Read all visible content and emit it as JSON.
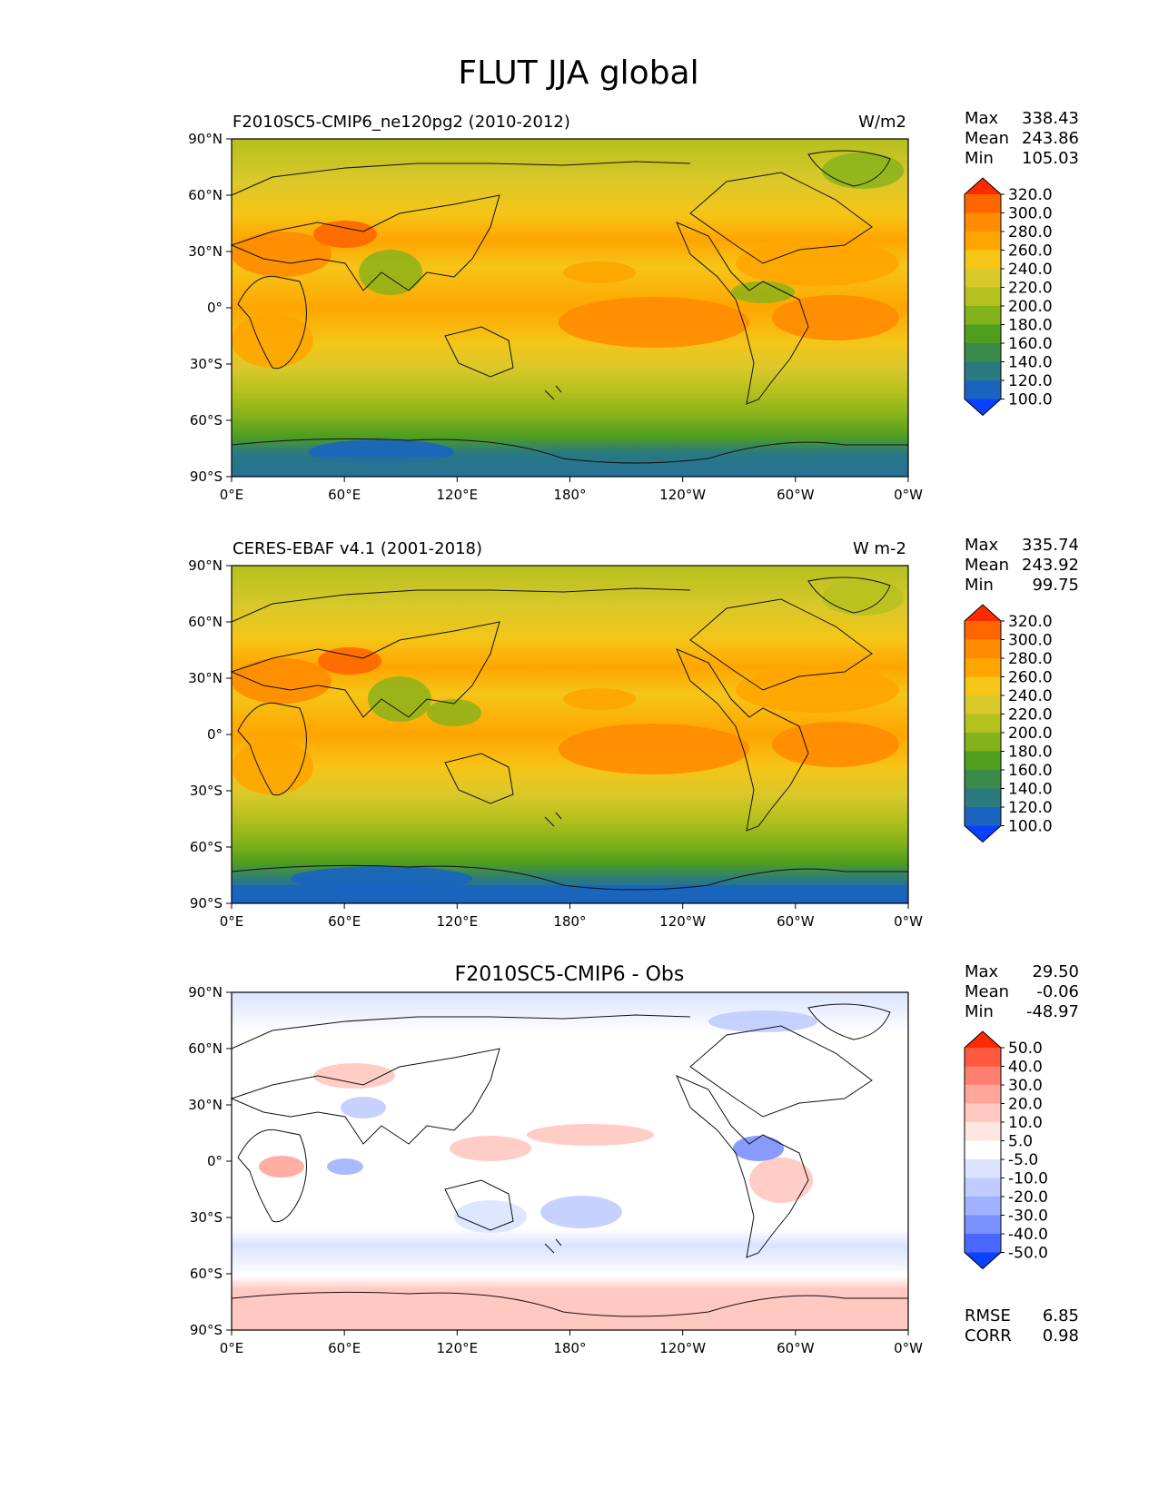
{
  "title": "FLUT JJA global",
  "x_ticks": [
    "0°E",
    "60°E",
    "120°E",
    "180°",
    "120°W",
    "60°W",
    "0°W"
  ],
  "y_ticks": [
    "90°N",
    "60°N",
    "30°N",
    "0°",
    "30°S",
    "60°S",
    "90°S"
  ],
  "panels": [
    {
      "id": "model",
      "left_title": "F2010SC5-CMIP6_ne120pg2 (2010-2012)",
      "center_title": "",
      "units": "W/m2",
      "stats": [
        {
          "label": "Max",
          "value": "338.43"
        },
        {
          "label": "Mean",
          "value": "243.86"
        },
        {
          "label": "Min",
          "value": "105.03"
        }
      ],
      "colorbar_labels": [
        "320.0",
        "300.0",
        "280.0",
        "260.0",
        "240.0",
        "220.0",
        "200.0",
        "180.0",
        "160.0",
        "140.0",
        "120.0",
        "100.0"
      ],
      "colorbar_colors": [
        "#ff2a00",
        "#ff6600",
        "#ff8c00",
        "#ffa500",
        "#f5c518",
        "#d9c82a",
        "#b4c01e",
        "#84b21a",
        "#4f9e1e",
        "#3a8a4a",
        "#2a7a80",
        "#1a64c0",
        "#0a40ff"
      ]
    },
    {
      "id": "obs",
      "left_title": "CERES-EBAF v4.1 (2001-2018)",
      "center_title": "",
      "units": "W m-2",
      "stats": [
        {
          "label": "Max",
          "value": "335.74"
        },
        {
          "label": "Mean",
          "value": "243.92"
        },
        {
          "label": "Min",
          "value": "99.75"
        }
      ],
      "colorbar_labels": [
        "320.0",
        "300.0",
        "280.0",
        "260.0",
        "240.0",
        "220.0",
        "200.0",
        "180.0",
        "160.0",
        "140.0",
        "120.0",
        "100.0"
      ],
      "colorbar_colors": [
        "#ff2a00",
        "#ff6600",
        "#ff8c00",
        "#ffa500",
        "#f5c518",
        "#d9c82a",
        "#b4c01e",
        "#84b21a",
        "#4f9e1e",
        "#3a8a4a",
        "#2a7a80",
        "#1a64c0",
        "#0a40ff"
      ]
    },
    {
      "id": "diff",
      "left_title": "",
      "center_title": "F2010SC5-CMIP6 - Obs",
      "units": "",
      "stats": [
        {
          "label": "Max",
          "value": "29.50"
        },
        {
          "label": "Mean",
          "value": "-0.06"
        },
        {
          "label": "Min",
          "value": "-48.97"
        }
      ],
      "colorbar_labels": [
        "50.0",
        "40.0",
        "30.0",
        "20.0",
        "10.0",
        "5.0",
        "-5.0",
        "-10.0",
        "-20.0",
        "-30.0",
        "-40.0",
        "-50.0"
      ],
      "colorbar_colors": [
        "#ff2a00",
        "#ff5a40",
        "#ff8070",
        "#ffa59a",
        "#ffc8c0",
        "#ffe6e2",
        "#ffffff",
        "#dbe3ff",
        "#c0ccff",
        "#a0b2ff",
        "#7a90ff",
        "#4a68ff",
        "#0a40ff"
      ],
      "footer": [
        {
          "label": "RMSE",
          "value": "6.85"
        },
        {
          "label": "CORR",
          "value": "0.98"
        }
      ]
    }
  ]
}
